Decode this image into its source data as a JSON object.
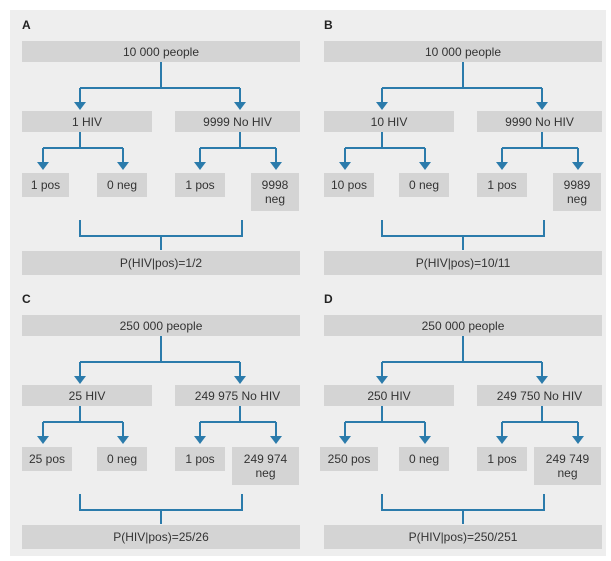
{
  "panels": [
    {
      "label": "A",
      "root": "10 000 people",
      "left_group": "1 HIV",
      "right_group": "9999 No HIV",
      "leaves": [
        "1 pos",
        "0 neg",
        "1 pos",
        "9998 neg"
      ],
      "result": "P(HIV|pos)=1/2"
    },
    {
      "label": "B",
      "root": "10 000 people",
      "left_group": "10 HIV",
      "right_group": "9990 No HIV",
      "leaves": [
        "10 pos",
        "0 neg",
        "1 pos",
        "9989 neg"
      ],
      "result": "P(HIV|pos)=10/11"
    },
    {
      "label": "C",
      "root": "250 000 people",
      "left_group": "25 HIV",
      "right_group": "249 975 No HIV",
      "leaves": [
        "25 pos",
        "0 neg",
        "1 pos",
        "249 974 neg"
      ],
      "result": "P(HIV|pos)=25/26"
    },
    {
      "label": "D",
      "root": "250 000 people",
      "left_group": "250 HIV",
      "right_group": "249 750 No HIV",
      "leaves": [
        "250 pos",
        "0 neg",
        "1 pos",
        "249 749 neg"
      ],
      "result": "P(HIV|pos)=250/251"
    }
  ],
  "colors": {
    "arrow": "#2b7bab",
    "box": "#d4d4d4",
    "panel_bg": "#eeeeee"
  }
}
